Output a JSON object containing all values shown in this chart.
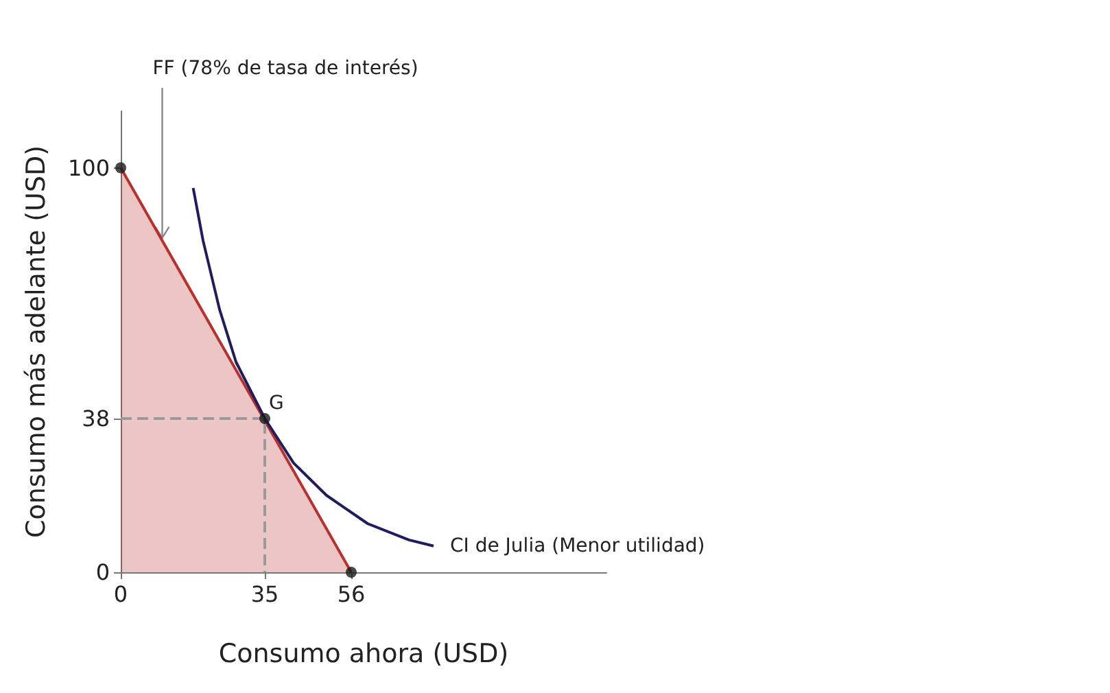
{
  "chart_data": {
    "type": "line",
    "xlabel": "Consumo ahora (USD)",
    "ylabel": "Consumo más adelante (USD)",
    "xlim": [
      0,
      118
    ],
    "ylim": [
      0,
      114
    ],
    "xticks": [
      0,
      35,
      56
    ],
    "yticks": [
      0,
      38,
      100
    ],
    "grid": false,
    "legend": false,
    "marker": "none",
    "annotations": [
      {
        "text": "G",
        "x": 35,
        "y": 38
      }
    ],
    "series": [
      {
        "type": "area",
        "name": "FF (78% de tasa de interés)",
        "color": "#b8312f",
        "x": [
          0,
          56
        ],
        "values": [
          100,
          0
        ]
      },
      {
        "name": "CI de Julia (Menor utilidad)",
        "color": "#1f1d5e",
        "x": [
          17.6,
          20,
          24,
          28,
          35,
          42,
          50,
          60,
          70,
          76
        ],
        "values": [
          95,
          82,
          65,
          52,
          38,
          27,
          19,
          12,
          8,
          6.5
        ]
      },
      {
        "type": "line",
        "line_style": "dashed",
        "color": "#999999",
        "x": [
          0,
          35,
          35
        ],
        "values": [
          38,
          38,
          0
        ]
      },
      {
        "type": "scatter",
        "marker": "circle",
        "color": "#1a1a1a",
        "x": [
          0,
          35,
          56
        ],
        "values": [
          100,
          38,
          0
        ]
      }
    ]
  }
}
